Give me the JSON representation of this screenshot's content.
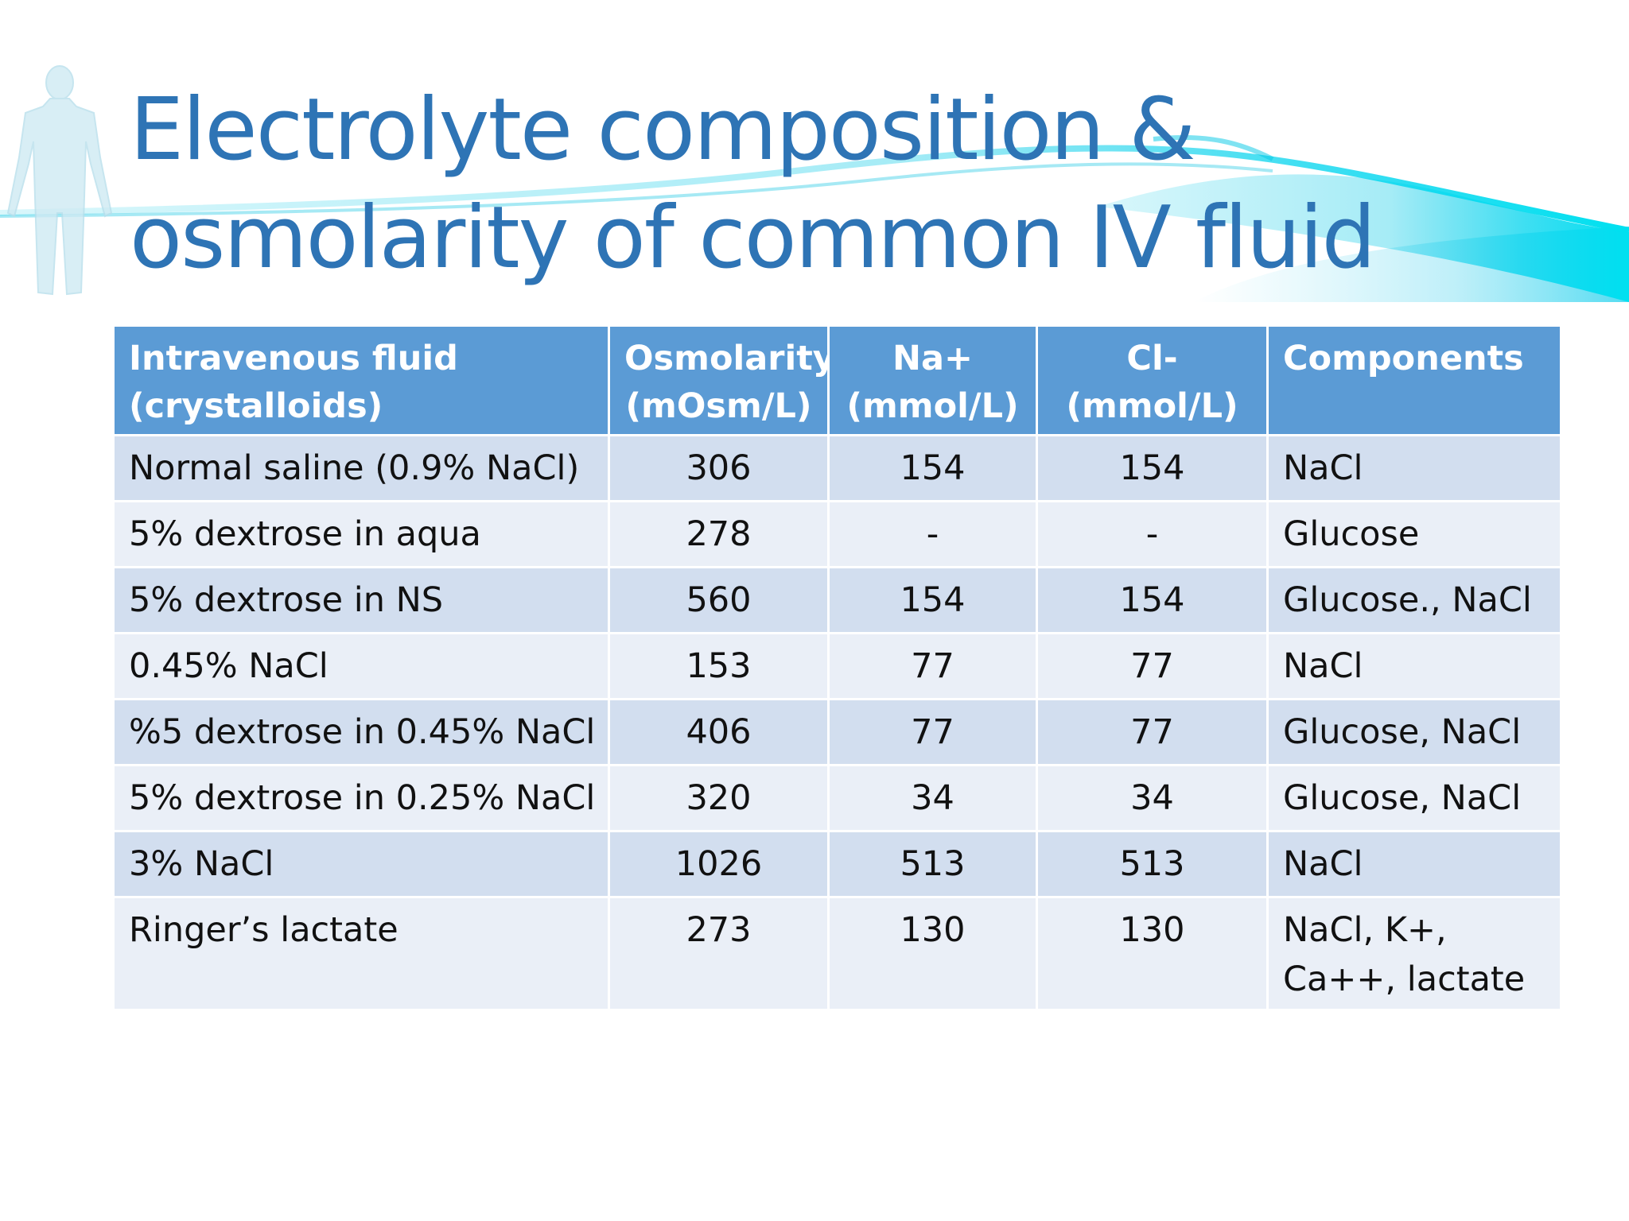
{
  "slide": {
    "title_line1": "Electrolyte composition &",
    "title_line2": "osmolarity of common IV fluid"
  },
  "table": {
    "headers": [
      {
        "line1": "Intravenous fluid",
        "line2": "(crystalloids)"
      },
      {
        "line1": "Osmolarity",
        "line2": "(mOsm/L)"
      },
      {
        "line1": "Na+",
        "line2": "(mmol/L)"
      },
      {
        "line1": "Cl-",
        "line2": "(mmol/L)"
      },
      {
        "line1": "Components",
        "line2": ""
      }
    ],
    "rows": [
      [
        "Normal saline (0.9% NaCl)",
        "306",
        "154",
        "154",
        "NaCl"
      ],
      [
        "5% dextrose in aqua",
        "278",
        "-",
        "-",
        "Glucose"
      ],
      [
        "5% dextrose in NS",
        "560",
        "154",
        "154",
        "Glucose., NaCl"
      ],
      [
        "0.45% NaCl",
        "153",
        "77",
        "77",
        "NaCl"
      ],
      [
        "%5 dextrose in 0.45% NaCl",
        "406",
        "77",
        "77",
        "Glucose, NaCl"
      ],
      [
        "5% dextrose in 0.25% NaCl",
        "320",
        "34",
        "34",
        "Glucose, NaCl"
      ],
      [
        "3% NaCl",
        "1026",
        "513",
        "513",
        "NaCl"
      ],
      [
        "Ringer’s lactate",
        "273",
        "130",
        "130",
        "NaCl, K+, Ca++, lactate"
      ]
    ]
  },
  "colors": {
    "title": "#2e74b5",
    "header_bg": "#5b9bd5",
    "row_dark": "#d2deef",
    "row_light": "#eaeff7",
    "wave": "#00c8e6"
  },
  "decor": {
    "wave_icon": "water-wave-icon",
    "figure_icon": "human-figure-icon"
  }
}
